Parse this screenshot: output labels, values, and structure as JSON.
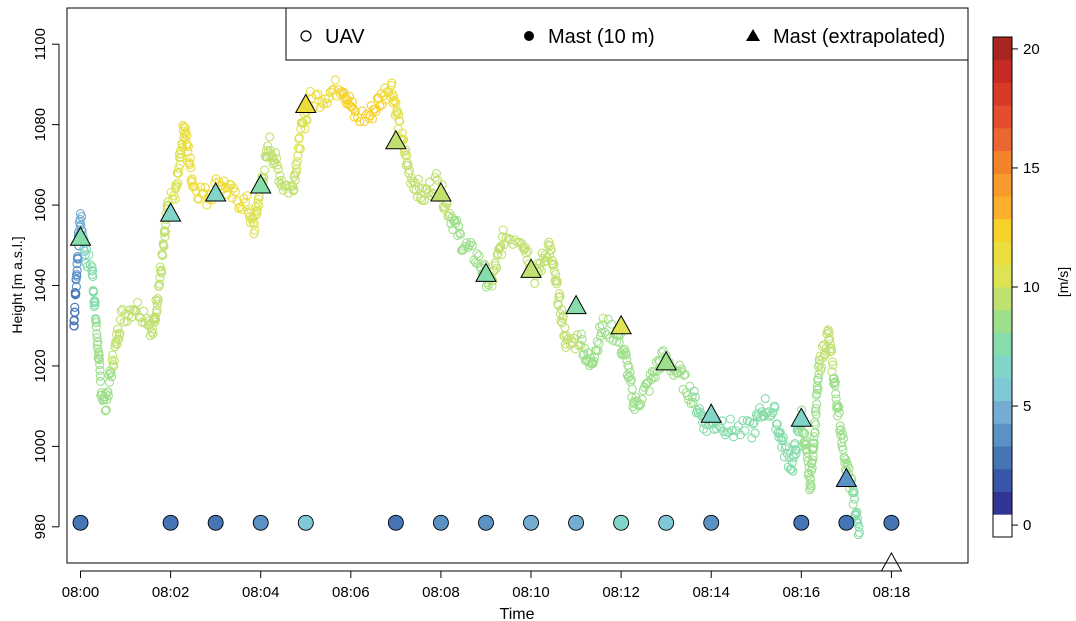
{
  "chart_data": {
    "type": "scatter",
    "xlabel": "Time",
    "ylabel": "Height [m a.s.l.]",
    "xlim": [
      -0.3,
      19.7
    ],
    "ylim": [
      971,
      1109
    ],
    "x_ticks": [
      {
        "v": 0,
        "label": "08:00"
      },
      {
        "v": 2,
        "label": "08:02"
      },
      {
        "v": 4,
        "label": "08:04"
      },
      {
        "v": 6,
        "label": "08:06"
      },
      {
        "v": 8,
        "label": "08:08"
      },
      {
        "v": 10,
        "label": "08:10"
      },
      {
        "v": 12,
        "label": "08:12"
      },
      {
        "v": 14,
        "label": "08:14"
      },
      {
        "v": 16,
        "label": "08:16"
      },
      {
        "v": 18,
        "label": "08:18"
      }
    ],
    "y_ticks": [
      {
        "v": 980,
        "label": "980"
      },
      {
        "v": 1000,
        "label": "1000"
      },
      {
        "v": 1020,
        "label": "1020"
      },
      {
        "v": 1040,
        "label": "1040"
      },
      {
        "v": 1060,
        "label": "1060"
      },
      {
        "v": 1080,
        "label": "1080"
      },
      {
        "v": 1100,
        "label": "1100"
      }
    ],
    "legend": {
      "placement": "top-right",
      "items": [
        {
          "symbol": "open-circle",
          "label": "UAV"
        },
        {
          "symbol": "filled-circle",
          "label": "Mast (10 m)"
        },
        {
          "symbol": "triangle",
          "label": "Mast (extrapolated)"
        }
      ]
    },
    "colorbar": {
      "label": "[m/s]",
      "range": [
        0,
        21
      ],
      "ticks": [
        {
          "v": 0,
          "label": "0"
        },
        {
          "v": 5,
          "label": "5"
        },
        {
          "v": 10,
          "label": "10"
        },
        {
          "v": 15,
          "label": "15"
        },
        {
          "v": 20,
          "label": "20"
        }
      ],
      "colors": [
        "#ffffff",
        "#313695",
        "#3a56a8",
        "#4575b4",
        "#5a92c6",
        "#74add1",
        "#7fc8d6",
        "#80d4c8",
        "#86dcaa",
        "#9edf8c",
        "#c0e070",
        "#dde353",
        "#ecdd3e",
        "#f6d12a",
        "#fbaf2c",
        "#f99a2c",
        "#f2822c",
        "#ea6632",
        "#e24e2e",
        "#d83a28",
        "#c62a24",
        "#a82620"
      ]
    },
    "uav_path": [
      [
        -0.15,
        1030,
        2.5
      ],
      [
        -0.1,
        1040,
        3.0
      ],
      [
        -0.05,
        1050,
        3.5
      ],
      [
        0.0,
        1057,
        4.5
      ],
      [
        0.08,
        1050,
        5.5
      ],
      [
        0.15,
        1046,
        7.5
      ],
      [
        0.25,
        1045,
        7.8
      ],
      [
        0.35,
        1030,
        8.0
      ],
      [
        0.45,
        1015,
        8.5
      ],
      [
        0.55,
        1010,
        8.5
      ],
      [
        0.7,
        1020,
        9.0
      ],
      [
        0.9,
        1032,
        9.0
      ],
      [
        1.2,
        1035,
        9.5
      ],
      [
        1.5,
        1032,
        9.5
      ],
      [
        1.6,
        1028,
        9.5
      ],
      [
        1.8,
        1045,
        9.8
      ],
      [
        1.95,
        1060,
        10.0
      ],
      [
        2.1,
        1062,
        10.5
      ],
      [
        2.3,
        1080,
        11.0
      ],
      [
        2.5,
        1065,
        11.0
      ],
      [
        2.8,
        1062,
        11.0
      ],
      [
        3.1,
        1066,
        11.5
      ],
      [
        3.4,
        1062,
        11.5
      ],
      [
        3.7,
        1060,
        11.0
      ],
      [
        3.85,
        1054,
        10.5
      ],
      [
        4.0,
        1065,
        10.0
      ],
      [
        4.2,
        1075,
        9.5
      ],
      [
        4.5,
        1065,
        9.5
      ],
      [
        4.7,
        1064,
        9.5
      ],
      [
        4.9,
        1078,
        10.5
      ],
      [
        5.1,
        1086,
        11.0
      ],
      [
        5.4,
        1087,
        11.5
      ],
      [
        5.8,
        1090,
        12.0
      ],
      [
        6.1,
        1082,
        12.0
      ],
      [
        6.4,
        1082,
        12.0
      ],
      [
        6.7,
        1087,
        12.0
      ],
      [
        6.9,
        1090,
        11.5
      ],
      [
        7.1,
        1078,
        10.5
      ],
      [
        7.3,
        1068,
        9.5
      ],
      [
        7.6,
        1062,
        9.0
      ],
      [
        7.9,
        1066,
        9.5
      ],
      [
        8.2,
        1058,
        9.0
      ],
      [
        8.5,
        1050,
        8.5
      ],
      [
        8.8,
        1047,
        8.5
      ],
      [
        9.1,
        1040,
        9.0
      ],
      [
        9.4,
        1052,
        9.0
      ],
      [
        9.8,
        1052,
        9.0
      ],
      [
        10.1,
        1042,
        9.5
      ],
      [
        10.4,
        1050,
        9.5
      ],
      [
        10.8,
        1025,
        9.0
      ],
      [
        11.1,
        1027,
        9.0
      ],
      [
        11.3,
        1020,
        8.5
      ],
      [
        11.6,
        1030,
        9.0
      ],
      [
        11.9,
        1028,
        8.5
      ],
      [
        12.1,
        1022,
        8.5
      ],
      [
        12.3,
        1010,
        8.0
      ],
      [
        12.6,
        1015,
        8.5
      ],
      [
        12.9,
        1022,
        8.0
      ],
      [
        13.3,
        1018,
        8.0
      ],
      [
        13.6,
        1012,
        8.0
      ],
      [
        13.9,
        1005,
        7.8
      ],
      [
        14.2,
        1006,
        7.8
      ],
      [
        14.5,
        1004,
        7.5
      ],
      [
        14.9,
        1004,
        7.5
      ],
      [
        15.2,
        1010,
        7.8
      ],
      [
        15.4,
        1008,
        7.8
      ],
      [
        15.6,
        1000,
        7.5
      ],
      [
        15.8,
        995,
        7.5
      ],
      [
        16.0,
        1008,
        8.0
      ],
      [
        16.2,
        990,
        8.5
      ],
      [
        16.4,
        1020,
        9.0
      ],
      [
        16.6,
        1028,
        9.5
      ],
      [
        16.8,
        1010,
        8.5
      ],
      [
        17.0,
        995,
        8.0
      ],
      [
        17.15,
        988,
        8.0
      ],
      [
        17.3,
        977,
        7.5
      ]
    ],
    "mast_10m": [
      {
        "t": 0,
        "v": 2.5
      },
      {
        "t": 2,
        "v": 2.5
      },
      {
        "t": 3,
        "v": 2.5
      },
      {
        "t": 4,
        "v": 3.0
      },
      {
        "t": 5,
        "v": 5.5
      },
      {
        "t": 7,
        "v": 2.5
      },
      {
        "t": 8,
        "v": 3.5
      },
      {
        "t": 9,
        "v": 3.5
      },
      {
        "t": 10,
        "v": 4.5
      },
      {
        "t": 11,
        "v": 4.0
      },
      {
        "t": 12,
        "v": 6.0
      },
      {
        "t": 13,
        "v": 5.0
      },
      {
        "t": 14,
        "v": 3.0
      },
      {
        "t": 16,
        "v": 2.5
      },
      {
        "t": 17,
        "v": 2.5
      },
      {
        "t": 18,
        "v": 2.5
      }
    ],
    "mast_height": 981,
    "mast_extrapolated": [
      {
        "t": 0,
        "h": 1052,
        "v": 7.0
      },
      {
        "t": 2,
        "h": 1058,
        "v": 6.5
      },
      {
        "t": 3,
        "h": 1063,
        "v": 6.0
      },
      {
        "t": 4,
        "h": 1065,
        "v": 7.0
      },
      {
        "t": 5,
        "h": 1085,
        "v": 11.0
      },
      {
        "t": 7,
        "h": 1076,
        "v": 9.0
      },
      {
        "t": 8,
        "h": 1063,
        "v": 9.5
      },
      {
        "t": 9,
        "h": 1043,
        "v": 7.0
      },
      {
        "t": 10,
        "h": 1044,
        "v": 9.5
      },
      {
        "t": 11,
        "h": 1035,
        "v": 7.0
      },
      {
        "t": 12,
        "h": 1030,
        "v": 10.5
      },
      {
        "t": 13,
        "h": 1021,
        "v": 8.0
      },
      {
        "t": 14,
        "h": 1008,
        "v": 6.5
      },
      {
        "t": 16,
        "h": 1007,
        "v": 6.5
      },
      {
        "t": 17,
        "h": 992,
        "v": 3.5
      },
      {
        "t": 18,
        "h": 971,
        "v": 0.0
      }
    ]
  }
}
